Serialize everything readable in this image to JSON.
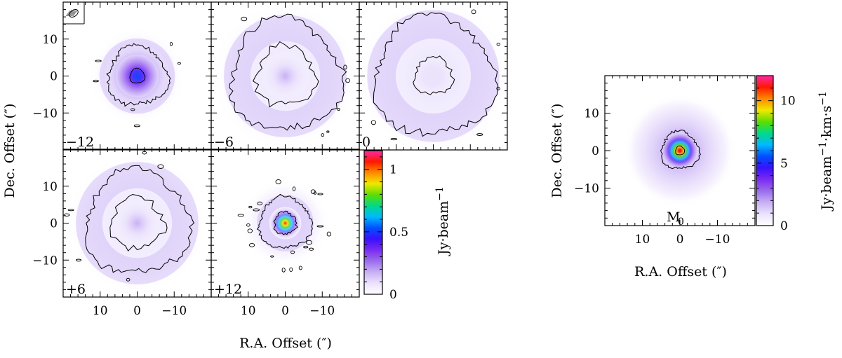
{
  "figure": {
    "channel_panels": [
      {
        "label": "−12",
        "velocity": -12,
        "intensity_peak": 0.55,
        "core_radius": 4,
        "ring": {
          "radius": 8,
          "amplitude": 0.18
        },
        "outer_contour_radius": 8,
        "inner_contour": {
          "radius": 2,
          "smooth": true
        }
      },
      {
        "label": "−6",
        "velocity": -6,
        "intensity_peak": 0.15,
        "core_radius": 3,
        "ring": {
          "radius": 13,
          "amplitude": 0.12
        },
        "outer_contour_radius": 15,
        "inner_contour": {
          "radius": 8,
          "smooth": false
        }
      },
      {
        "label": "0",
        "velocity": 0,
        "intensity_peak": 0.12,
        "core_radius": 2.5,
        "ring": {
          "radius": 14,
          "amplitude": 0.12
        },
        "outer_contour_radius": 16,
        "inner_contour": {
          "radius": 5,
          "smooth": false
        }
      },
      {
        "label": "+6",
        "velocity": 6,
        "intensity_peak": 0.15,
        "core_radius": 3,
        "ring": {
          "radius": 13,
          "amplitude": 0.12
        },
        "outer_contour_radius": 14,
        "inner_contour": {
          "radius": 7,
          "smooth": false
        }
      },
      {
        "label": "+12",
        "velocity": 12,
        "intensity_peak": 1.1,
        "core_radius": 2,
        "ring": {
          "radius": 6,
          "amplitude": 0.2
        },
        "outer_contour_radius": 7,
        "inner_contour": {
          "radius": 3,
          "smooth": false
        }
      }
    ],
    "moment_panel": {
      "label": "M",
      "label_subscript": "0",
      "intensity_peak": 11.5,
      "core_radius": 2,
      "halo_radius": 10,
      "outer_contour_radius": 5,
      "inner_contour": {
        "radius": 1.2
      }
    },
    "axes": {
      "xlim": [
        20,
        -20
      ],
      "ylim": [
        -20,
        20
      ],
      "x_ticks": [
        10,
        0,
        -10
      ],
      "y_ticks": [
        10,
        0,
        -10
      ],
      "x_tick_labels": [
        "10",
        "0",
        "−10"
      ],
      "y_tick_labels": [
        "10",
        "0",
        "−10"
      ],
      "xlabel": "R.A. Offset (″)",
      "ylabel": "Dec. Offset (″)"
    },
    "colorbar_channels": {
      "range": [
        0,
        1.15
      ],
      "tick_values": [
        0,
        0.5,
        1
      ],
      "tick_labels": [
        "0",
        "0.5",
        "1"
      ],
      "label": "Jy·beam",
      "label_superscript": "−1"
    },
    "colorbar_moment": {
      "range": [
        0,
        12
      ],
      "tick_values": [
        0,
        5,
        10
      ],
      "tick_labels": [
        "0",
        "5",
        "10"
      ],
      "label": "Jy·beam",
      "label_superscript": "−1",
      "label_suffix": "·km·s",
      "label_suffix_superscript": "−1"
    },
    "colormap": [
      "#ffffff",
      "#ebe2fc",
      "#c8b0f5",
      "#9b6cee",
      "#7a2cf0",
      "#3a10ff",
      "#0050ff",
      "#00b8ff",
      "#00d98a",
      "#5cdd00",
      "#f0e800",
      "#ff8a00",
      "#ff1800",
      "#ff2aa8"
    ],
    "contour_color": "#000000"
  },
  "chart_data": {
    "type": "heatmap",
    "title": "",
    "xlabel": "R.A. Offset (″)",
    "ylabel": "Dec. Offset (″)",
    "xlim": [
      20,
      -20
    ],
    "ylim": [
      -20,
      20
    ],
    "series": [
      {
        "name": "−12",
        "peak": 0.55
      },
      {
        "name": "−6",
        "peak": 0.15
      },
      {
        "name": "0",
        "peak": 0.12
      },
      {
        "name": "+6",
        "peak": 0.15
      },
      {
        "name": "+12",
        "peak": 1.1
      },
      {
        "name": "M0",
        "peak": 11.5
      }
    ],
    "colorbars": [
      {
        "label": "Jy·beam⁻¹",
        "ticks": [
          0,
          0.5,
          1
        ],
        "range": [
          0,
          1.15
        ]
      },
      {
        "label": "Jy·beam⁻¹·km·s⁻¹",
        "ticks": [
          0,
          5,
          10
        ],
        "range": [
          0,
          12
        ]
      }
    ]
  }
}
